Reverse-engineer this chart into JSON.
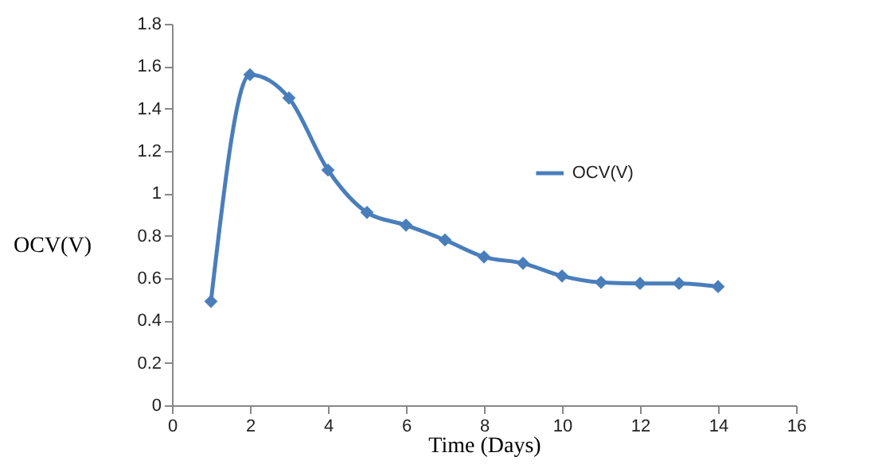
{
  "chart_data": {
    "type": "line",
    "xlabel": "Time  (Days)",
    "ylabel": "OCV(V)",
    "x": [
      1,
      2,
      3,
      4,
      5,
      6,
      7,
      8,
      9,
      10,
      11,
      12,
      13,
      14
    ],
    "series": [
      {
        "name": "OCV(V)",
        "color": "#4a7ebb",
        "values": [
          0.49,
          1.56,
          1.45,
          1.11,
          0.91,
          0.85,
          0.78,
          0.7,
          0.67,
          0.61,
          0.58,
          0.575,
          0.575,
          0.56
        ]
      }
    ],
    "xlim": [
      0,
      16
    ],
    "xticks": [
      0,
      2,
      4,
      6,
      8,
      10,
      12,
      14,
      16
    ],
    "ylim": [
      0,
      1.8
    ],
    "yticks": [
      0,
      0.2,
      0.4,
      0.6,
      0.8,
      1,
      1.2,
      1.4,
      1.6,
      1.8
    ],
    "grid": false,
    "legend": "right",
    "marker": "diamond",
    "line_style": "solid"
  }
}
